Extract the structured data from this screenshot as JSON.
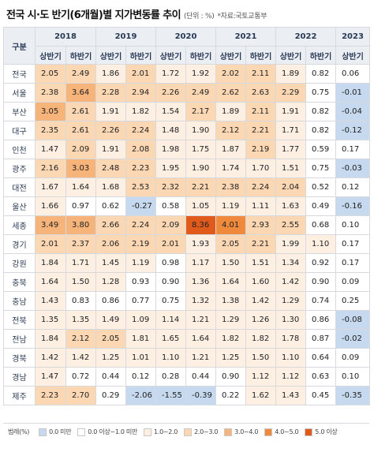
{
  "title": "전국 시·도 반기(6개월)별 지가변동률 추이",
  "unit": "(단위 : %)",
  "source": "*자료:국토교통부",
  "header": {
    "region_label": "구분",
    "years": [
      "2018",
      "2019",
      "2020",
      "2021",
      "2022",
      "2023"
    ],
    "halves": [
      "상반기",
      "하반기",
      "상반기",
      "하반기",
      "상반기",
      "하반기",
      "상반기",
      "하반기",
      "상반기",
      "하반기",
      "상반기"
    ]
  },
  "rows": [
    {
      "region": "전국",
      "values": [
        "2.05",
        "2.49",
        "1.86",
        "2.01",
        "1.72",
        "1.92",
        "2.02",
        "2.11",
        "1.89",
        "0.82",
        "0.06"
      ]
    },
    {
      "region": "서울",
      "values": [
        "2.38",
        "3.64",
        "2.28",
        "2.94",
        "2.26",
        "2.49",
        "2.62",
        "2.63",
        "2.29",
        "0.75",
        "-0.01"
      ]
    },
    {
      "region": "부산",
      "values": [
        "3.05",
        "2.61",
        "1.91",
        "1.82",
        "1.54",
        "2.17",
        "1.89",
        "2.11",
        "1.91",
        "0.82",
        "-0.04"
      ]
    },
    {
      "region": "대구",
      "values": [
        "2.35",
        "2.61",
        "2.26",
        "2.24",
        "1.48",
        "1.90",
        "2.12",
        "2.21",
        "1.71",
        "0.82",
        "-0.12"
      ]
    },
    {
      "region": "인천",
      "values": [
        "1.47",
        "2.09",
        "1.91",
        "2.08",
        "1.98",
        "1.75",
        "1.87",
        "2.19",
        "1.77",
        "0.59",
        "0.17"
      ]
    },
    {
      "region": "광주",
      "values": [
        "2.16",
        "3.03",
        "2.48",
        "2.23",
        "1.95",
        "1.90",
        "1.74",
        "1.70",
        "1.51",
        "0.75",
        "-0.03"
      ]
    },
    {
      "region": "대전",
      "values": [
        "1.67",
        "1.64",
        "1.68",
        "2.53",
        "2.32",
        "2.21",
        "2.38",
        "2.24",
        "2.04",
        "0.52",
        "0.12"
      ]
    },
    {
      "region": "울산",
      "values": [
        "1.66",
        "0.97",
        "0.62",
        "-0.27",
        "0.58",
        "1.05",
        "1.19",
        "1.11",
        "1.63",
        "0.49",
        "-0.16"
      ]
    },
    {
      "region": "세종",
      "values": [
        "3.49",
        "3.80",
        "2.66",
        "2.24",
        "2.09",
        "8.36",
        "4.01",
        "2.93",
        "2.55",
        "0.68",
        "0.10"
      ]
    },
    {
      "region": "경기",
      "values": [
        "2.01",
        "2.37",
        "2.06",
        "2.19",
        "2.01",
        "1.93",
        "2.05",
        "2.21",
        "1.99",
        "1.10",
        "0.17"
      ]
    },
    {
      "region": "강원",
      "values": [
        "1.84",
        "1.71",
        "1.45",
        "1.19",
        "0.98",
        "1.17",
        "1.50",
        "1.51",
        "1.34",
        "0.92",
        "0.17"
      ]
    },
    {
      "region": "충북",
      "values": [
        "1.64",
        "1.50",
        "1.28",
        "0.93",
        "0.90",
        "1.36",
        "1.64",
        "1.60",
        "1.42",
        "0.90",
        "0.09"
      ]
    },
    {
      "region": "충남",
      "values": [
        "1.43",
        "0.83",
        "0.86",
        "0.77",
        "0.75",
        "1.32",
        "1.38",
        "1.42",
        "1.29",
        "0.74",
        "0.25"
      ]
    },
    {
      "region": "전북",
      "values": [
        "1.35",
        "1.35",
        "1.49",
        "1.09",
        "1.14",
        "1.21",
        "1.29",
        "1.26",
        "1.30",
        "0.86",
        "-0.08"
      ]
    },
    {
      "region": "전남",
      "values": [
        "1.84",
        "2.12",
        "2.05",
        "1.81",
        "1.65",
        "1.64",
        "1.82",
        "1.82",
        "1.78",
        "0.87",
        "-0.02"
      ]
    },
    {
      "region": "경북",
      "values": [
        "1.42",
        "1.42",
        "1.25",
        "1.01",
        "1.10",
        "1.21",
        "1.25",
        "1.50",
        "1.10",
        "0.64",
        "0.09"
      ]
    },
    {
      "region": "경남",
      "values": [
        "1.47",
        "0.72",
        "0.44",
        "0.12",
        "0.28",
        "0.44",
        "0.90",
        "1.12",
        "1.12",
        "0.63",
        "0.10"
      ]
    },
    {
      "region": "제주",
      "values": [
        "2.23",
        "2.70",
        "0.29",
        "-2.06",
        "-1.55",
        "-0.39",
        "0.22",
        "1.62",
        "1.43",
        "0.45",
        "-0.35"
      ]
    }
  ],
  "legend": {
    "title": "범례(%)",
    "items": [
      {
        "label": "0.0 미만",
        "color": "#c6d9ef"
      },
      {
        "label": "0.0 이상~1.0 미만",
        "color": "#ffffff"
      },
      {
        "label": "1.0~2.0",
        "color": "#fdf0e3"
      },
      {
        "label": "2.0~3.0",
        "color": "#fbd7b3"
      },
      {
        "label": "3.0~4.0",
        "color": "#f6b37a"
      },
      {
        "label": "4.0~5.0",
        "color": "#ef8a3c"
      },
      {
        "label": "5.0 이상",
        "color": "#e05a1c"
      }
    ]
  },
  "colors": {
    "negative": "#c6d9ef",
    "zero_one": "#ffffff",
    "one_two": "#fdf0e3",
    "two_three": "#fbd7b3",
    "three_four": "#f6b37a",
    "four_five": "#ef8a3c",
    "five_plus": "#e05a1c",
    "header_bg": "#ebeef3"
  }
}
